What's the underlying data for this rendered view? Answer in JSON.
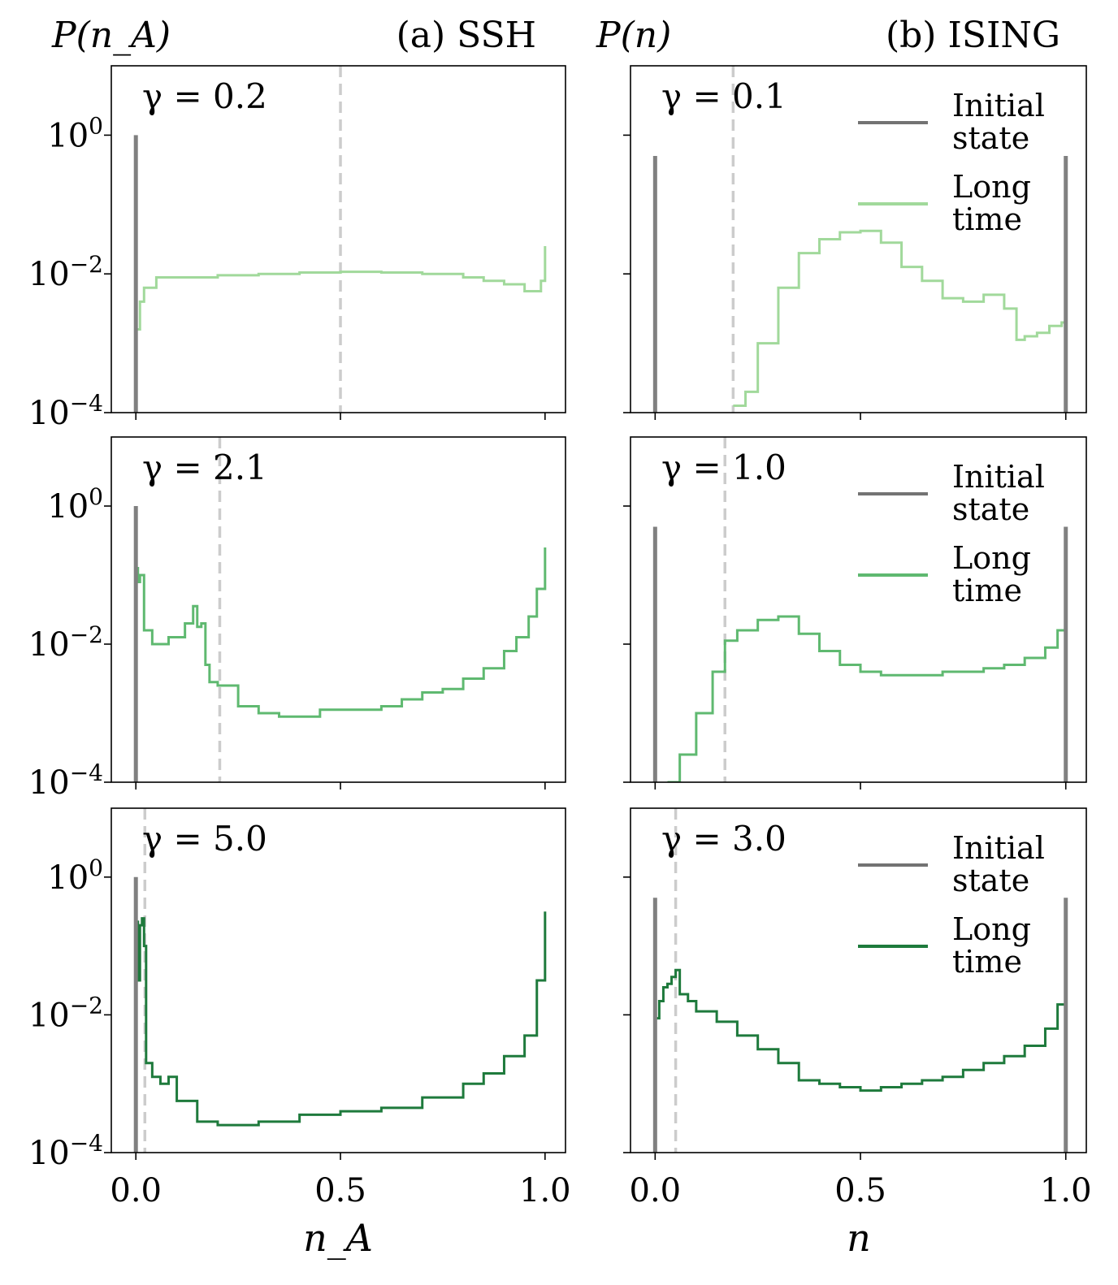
{
  "figure": {
    "left_panel": {
      "header_label": "(a) SSH",
      "header_bold": "a",
      "header_name": "SSH",
      "ylabel": "P(n_A)",
      "xlabel": "n_A"
    },
    "right_panel": {
      "header_label": "(b) ISING",
      "header_bold": "b",
      "header_name": "ISING",
      "ylabel": "P(n)",
      "xlabel": "n"
    }
  },
  "colors": {
    "initial": "#808080",
    "legend_initial": "#737373",
    "dashed": "#cccccc",
    "series": [
      "#a1d99b",
      "#5fb970",
      "#1e7a3c"
    ]
  },
  "legend": {
    "initial_line1": "Initial",
    "initial_line2": "state",
    "long_line1": "Long",
    "long_line2": "time"
  },
  "y_tick_labels": [
    "10^0",
    "10^-2",
    "10^-4"
  ],
  "x_tick_labels": [
    "0.0",
    "0.5",
    "1.0"
  ],
  "chart_data": [
    {
      "type": "line",
      "panel": "SSH",
      "row": 1,
      "gamma_label": "γ = 0.2",
      "xlim": [
        -0.06,
        1.05
      ],
      "ylim_log10": [
        -4,
        1
      ],
      "initial_state": [
        {
          "x": 0.0,
          "log10y": 0
        }
      ],
      "dashed_line_x": 0.5,
      "long_time": {
        "x": [
          0.0,
          0.01,
          0.02,
          0.05,
          0.1,
          0.15,
          0.2,
          0.3,
          0.4,
          0.5,
          0.6,
          0.7,
          0.8,
          0.85,
          0.9,
          0.95,
          0.99,
          1.0
        ],
        "log10y": [
          -2.8,
          -2.4,
          -2.2,
          -2.05,
          -2.05,
          -2.05,
          -2.02,
          -2.0,
          -1.98,
          -1.97,
          -1.98,
          -2.0,
          -2.05,
          -2.1,
          -2.15,
          -2.25,
          -2.1,
          -1.6
        ]
      }
    },
    {
      "type": "line",
      "panel": "SSH",
      "row": 2,
      "gamma_label": "γ = 2.1",
      "xlim": [
        -0.06,
        1.05
      ],
      "ylim_log10": [
        -4,
        1
      ],
      "initial_state": [
        {
          "x": 0.0,
          "log10y": 0
        }
      ],
      "dashed_line_x": 0.205,
      "long_time": {
        "x": [
          0.0,
          0.005,
          0.01,
          0.02,
          0.04,
          0.08,
          0.12,
          0.14,
          0.15,
          0.16,
          0.17,
          0.18,
          0.2,
          0.25,
          0.3,
          0.35,
          0.4,
          0.45,
          0.5,
          0.55,
          0.6,
          0.65,
          0.7,
          0.75,
          0.8,
          0.85,
          0.9,
          0.93,
          0.96,
          0.98,
          1.0
        ],
        "log10y": [
          -0.9,
          -1.1,
          -1.0,
          -1.8,
          -2.0,
          -1.9,
          -1.7,
          -1.45,
          -1.75,
          -1.7,
          -2.3,
          -2.55,
          -2.6,
          -2.9,
          -3.0,
          -3.05,
          -3.05,
          -2.95,
          -2.95,
          -2.95,
          -2.9,
          -2.8,
          -2.7,
          -2.65,
          -2.5,
          -2.35,
          -2.1,
          -1.9,
          -1.6,
          -1.2,
          -0.6
        ]
      }
    },
    {
      "type": "line",
      "panel": "SSH",
      "row": 3,
      "gamma_label": "γ = 5.0",
      "xlim": [
        -0.06,
        1.05
      ],
      "ylim_log10": [
        -4,
        1
      ],
      "initial_state": [
        {
          "x": 0.0,
          "log10y": 0
        }
      ],
      "dashed_line_x": 0.022,
      "long_time": {
        "x": [
          0.0,
          0.005,
          0.01,
          0.015,
          0.02,
          0.025,
          0.04,
          0.06,
          0.08,
          0.1,
          0.15,
          0.2,
          0.3,
          0.4,
          0.5,
          0.6,
          0.7,
          0.8,
          0.85,
          0.9,
          0.95,
          0.98,
          1.0
        ],
        "log10y": [
          -0.65,
          -1.5,
          -0.7,
          -0.6,
          -1.0,
          -2.7,
          -2.9,
          -3.0,
          -2.9,
          -3.25,
          -3.55,
          -3.6,
          -3.55,
          -3.45,
          -3.4,
          -3.35,
          -3.2,
          -3.0,
          -2.85,
          -2.6,
          -2.3,
          -1.5,
          -0.5
        ]
      }
    },
    {
      "type": "line",
      "panel": "ISING",
      "row": 1,
      "gamma_label": "γ = 0.1",
      "xlim": [
        -0.06,
        1.05
      ],
      "ylim_log10": [
        -4,
        1
      ],
      "initial_state": [
        {
          "x": 0.0,
          "log10y": -0.3
        },
        {
          "x": 1.0,
          "log10y": -0.3
        }
      ],
      "dashed_line_x": 0.19,
      "long_time": {
        "x": [
          0.19,
          0.22,
          0.25,
          0.3,
          0.35,
          0.4,
          0.45,
          0.5,
          0.55,
          0.6,
          0.65,
          0.7,
          0.75,
          0.8,
          0.85,
          0.88,
          0.9,
          0.93,
          0.96,
          0.99,
          1.0
        ],
        "log10y": [
          -3.9,
          -3.7,
          -3.0,
          -2.2,
          -1.7,
          -1.5,
          -1.4,
          -1.38,
          -1.55,
          -1.9,
          -2.1,
          -2.35,
          -2.4,
          -2.3,
          -2.5,
          -2.95,
          -2.9,
          -2.85,
          -2.75,
          -2.7,
          -2.15
        ]
      }
    },
    {
      "type": "line",
      "panel": "ISING",
      "row": 2,
      "gamma_label": "γ = 1.0",
      "xlim": [
        -0.06,
        1.05
      ],
      "ylim_log10": [
        -4,
        1
      ],
      "initial_state": [
        {
          "x": 0.0,
          "log10y": -0.3
        },
        {
          "x": 1.0,
          "log10y": -0.3
        }
      ],
      "dashed_line_x": 0.17,
      "long_time": {
        "x": [
          0.03,
          0.06,
          0.1,
          0.14,
          0.17,
          0.2,
          0.25,
          0.3,
          0.35,
          0.4,
          0.45,
          0.5,
          0.55,
          0.6,
          0.65,
          0.7,
          0.75,
          0.8,
          0.85,
          0.9,
          0.95,
          0.98,
          1.0
        ],
        "log10y": [
          -4.0,
          -3.6,
          -3.0,
          -2.4,
          -1.95,
          -1.8,
          -1.65,
          -1.6,
          -1.85,
          -2.1,
          -2.3,
          -2.4,
          -2.45,
          -2.45,
          -2.45,
          -2.4,
          -2.4,
          -2.35,
          -2.3,
          -2.2,
          -2.05,
          -1.8,
          -1.3
        ]
      }
    },
    {
      "type": "line",
      "panel": "ISING",
      "row": 3,
      "gamma_label": "γ = 3.0",
      "xlim": [
        -0.06,
        1.05
      ],
      "ylim_log10": [
        -4,
        1
      ],
      "initial_state": [
        {
          "x": 0.0,
          "log10y": -0.3
        },
        {
          "x": 1.0,
          "log10y": -0.3
        }
      ],
      "dashed_line_x": 0.05,
      "long_time": {
        "x": [
          0.0,
          0.01,
          0.02,
          0.03,
          0.04,
          0.05,
          0.06,
          0.08,
          0.1,
          0.15,
          0.2,
          0.25,
          0.3,
          0.35,
          0.4,
          0.45,
          0.5,
          0.55,
          0.6,
          0.65,
          0.7,
          0.75,
          0.8,
          0.85,
          0.9,
          0.95,
          0.98,
          1.0
        ],
        "log10y": [
          -2.05,
          -1.8,
          -1.6,
          -1.55,
          -1.45,
          -1.35,
          -1.7,
          -1.8,
          -1.95,
          -2.1,
          -2.3,
          -2.5,
          -2.7,
          -2.95,
          -3.0,
          -3.05,
          -3.1,
          -3.05,
          -3.0,
          -2.95,
          -2.9,
          -2.8,
          -2.7,
          -2.6,
          -2.45,
          -2.2,
          -1.85,
          -1.2
        ]
      }
    }
  ]
}
